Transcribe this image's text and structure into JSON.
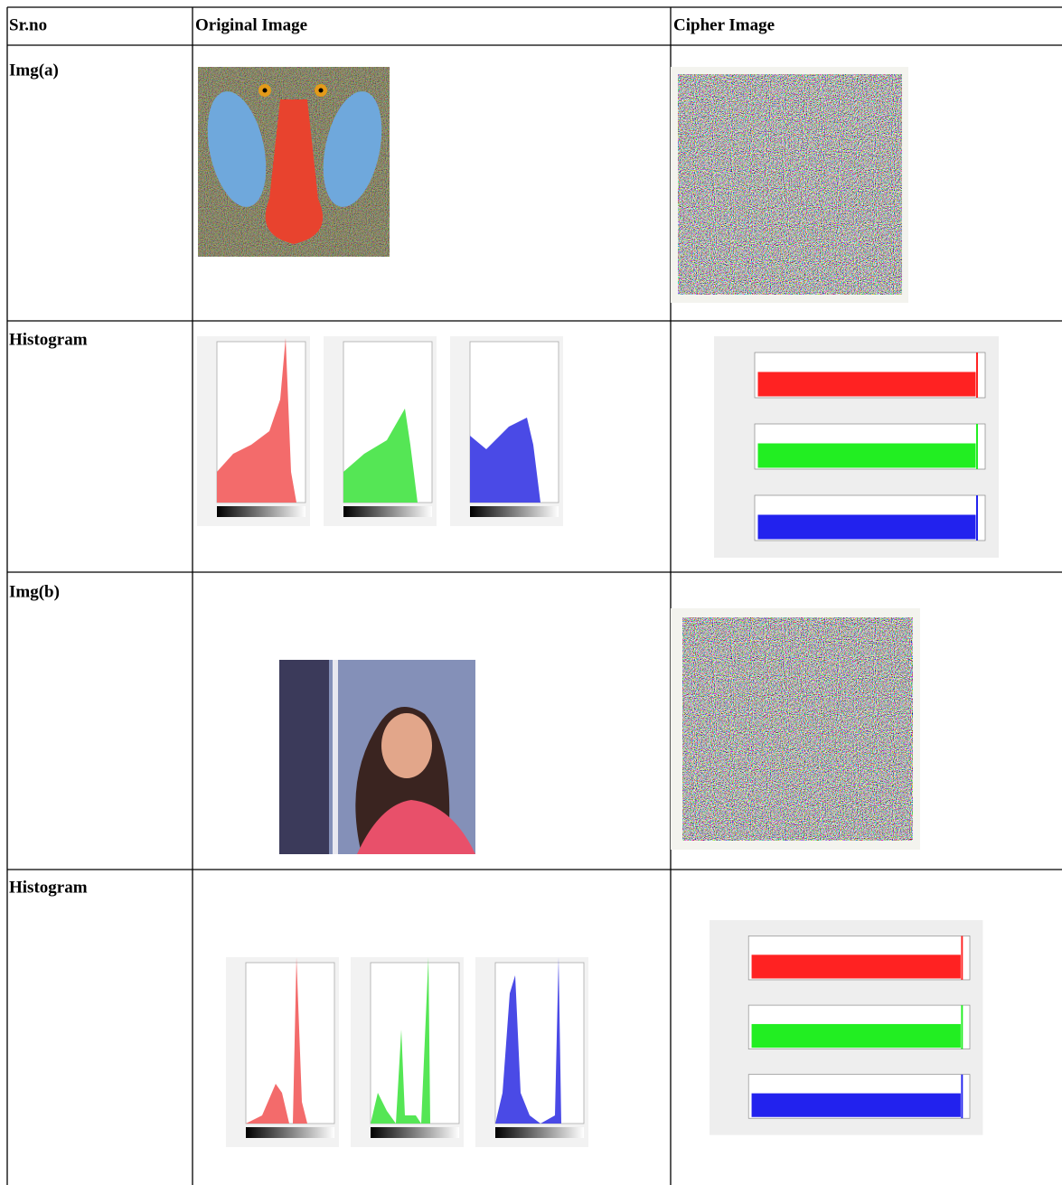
{
  "table": {
    "header": [
      "Sr.no",
      "Original Image",
      "Cipher Image"
    ],
    "rows": [
      [
        "Img(a)"
      ],
      [
        "Histogram"
      ],
      [
        "Img(b)"
      ],
      [
        "Histogram"
      ]
    ]
  }
}
